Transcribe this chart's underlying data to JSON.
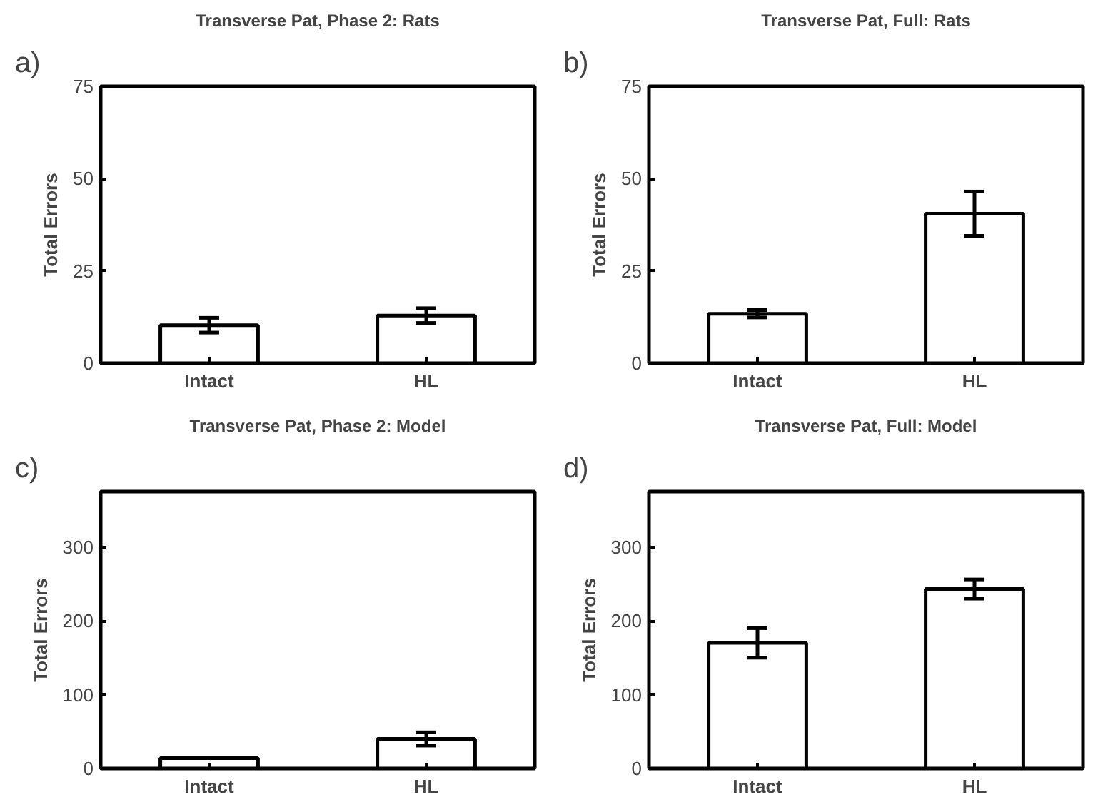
{
  "chart_data": [
    {
      "type": "bar",
      "title": "Transverse Pat, Phase 2: Rats",
      "ylabel": "Total Errors",
      "annotations": [
        "a)"
      ],
      "categories": [
        "Intact",
        "HL"
      ],
      "values": [
        10.3,
        12.9
      ],
      "errors": [
        2,
        2
      ],
      "color": "#ffffff",
      "ylim": [
        0,
        75
      ],
      "yticks": [
        0,
        25,
        50,
        75
      ],
      "grid": false
    },
    {
      "type": "bar",
      "title": "Transverse Pat, Full: Rats",
      "ylabel": "Total Errors",
      "annotations": [
        "b)"
      ],
      "categories": [
        "Intact",
        "HL"
      ],
      "values": [
        13.4,
        40.5
      ],
      "errors": [
        1,
        6
      ],
      "color": "#ffffff",
      "ylim": [
        0,
        75
      ],
      "yticks": [
        0,
        25,
        50,
        75
      ],
      "grid": false
    },
    {
      "type": "bar",
      "title": "Transverse Pat, Phase 2: Model",
      "ylabel": "Total Errors",
      "annotations": [
        "c)"
      ],
      "categories": [
        "Intact",
        "HL"
      ],
      "values": [
        14,
        40
      ],
      "errors": [
        null,
        9
      ],
      "color": "#ffffff",
      "ylim": [
        0,
        375
      ],
      "yticks": [
        0,
        100,
        200,
        300
      ],
      "grid": false
    },
    {
      "type": "bar",
      "title": "Transverse Pat, Full: Model",
      "ylabel": "Total Errors",
      "annotations": [
        "d)"
      ],
      "categories": [
        "Intact",
        "HL"
      ],
      "values": [
        170,
        243
      ],
      "errors": [
        20,
        13
      ],
      "color": "#ffffff",
      "ylim": [
        0,
        375
      ],
      "yticks": [
        0,
        100,
        200,
        300
      ],
      "grid": false
    }
  ]
}
